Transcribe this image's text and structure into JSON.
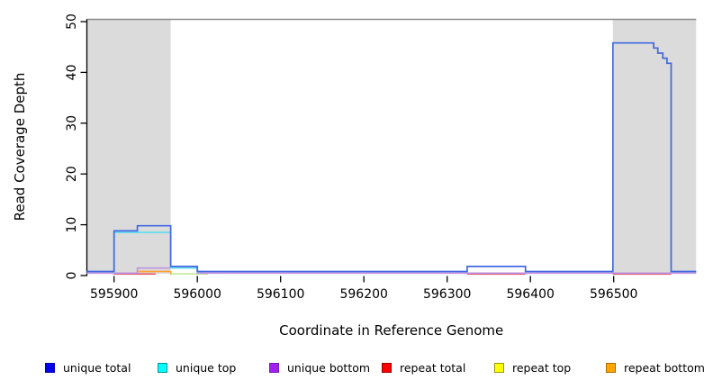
{
  "axes": {
    "ylabel": "Read Coverage Depth",
    "xlabel": "Coordinate in Reference Genome",
    "yticks": [
      0,
      10,
      20,
      30,
      40,
      50
    ],
    "xticks": [
      595900,
      596000,
      596100,
      596200,
      596300,
      596400,
      596500
    ]
  },
  "chart_data": {
    "type": "line",
    "subtype": "step-coverage",
    "title": "",
    "xlabel": "Coordinate in Reference Genome",
    "ylabel": "Read Coverage Depth",
    "xlim": [
      595867,
      596599
    ],
    "ylim": [
      0,
      51
    ],
    "grid": false,
    "legend_position": "bottom",
    "highlight_regions": [
      {
        "x0": 595867,
        "x1": 595968,
        "color": "#DBDBDB",
        "note": "repeat-region-shading-left"
      },
      {
        "x0": 596499,
        "x1": 596599,
        "color": "#DBDBDB",
        "note": "repeat-region-shading-right"
      }
    ],
    "top_rule": {
      "y": 50,
      "color": "#8A8A8A"
    },
    "series": [
      {
        "name": "unique total",
        "line_color": "#4169E1",
        "legend_fill": "#0000EE",
        "legend_border": "#0000B8",
        "segments": [
          [
            595867,
            595900,
            0
          ],
          [
            595900,
            595928,
            8
          ],
          [
            595928,
            595968,
            9
          ],
          [
            595968,
            596000,
            1
          ],
          [
            596000,
            596324,
            0
          ],
          [
            596324,
            596394,
            1
          ],
          [
            596394,
            596499,
            0
          ],
          [
            596499,
            596548,
            45
          ],
          [
            596548,
            596553,
            44
          ],
          [
            596553,
            596559,
            43
          ],
          [
            596559,
            596564,
            42
          ],
          [
            596564,
            596569,
            41
          ],
          [
            596569,
            596599,
            0
          ]
        ]
      },
      {
        "name": "unique top",
        "line_color": "#63DDEF",
        "legend_fill": "#00FFFF",
        "legend_border": "#009999",
        "segments": [
          [
            595900,
            595968,
            8
          ],
          [
            595968,
            596000,
            1
          ]
        ]
      },
      {
        "name": "unique bottom",
        "line_color": "#BE93E3",
        "legend_fill": "#A020F0",
        "legend_border": "#7818BC",
        "segments": [
          [
            595867,
            595928,
            0
          ],
          [
            595928,
            596000,
            1
          ],
          [
            596000,
            596599,
            0
          ]
        ]
      },
      {
        "name": "repeat total",
        "line_color": "#E25563",
        "legend_fill": "#FF0000",
        "legend_border": "#990000",
        "segments": [
          [
            595900,
            595950,
            0
          ],
          [
            596324,
            596394,
            0
          ],
          [
            596499,
            596569,
            0
          ]
        ]
      },
      {
        "name": "repeat top",
        "line_color": "#C3E896",
        "legend_fill": "#FFFF00",
        "legend_border": "#9A9A00",
        "segments": [
          [
            595968,
            596012,
            0.2
          ]
        ]
      },
      {
        "name": "repeat bottom",
        "line_color": "#FFA333",
        "legend_fill": "#FFA500",
        "legend_border": "#AA6E00",
        "segments": [
          [
            595928,
            595968,
            0.5
          ]
        ]
      }
    ]
  }
}
